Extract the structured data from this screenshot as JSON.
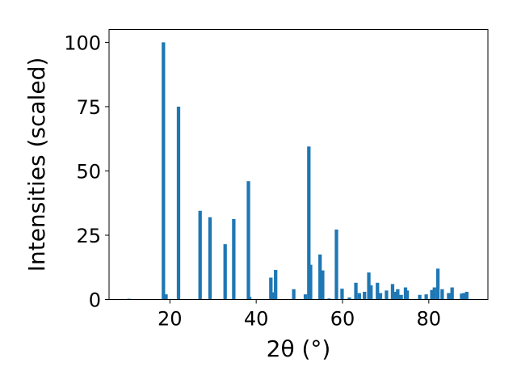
{
  "chart_data": {
    "type": "bar",
    "title": "",
    "xlabel": "2θ (°)",
    "ylabel": "Intensities (scaled)",
    "xlim": [
      5.9,
      93.7
    ],
    "ylim": [
      0,
      105
    ],
    "xticks": [
      20,
      40,
      60,
      80
    ],
    "yticks": [
      0,
      25,
      50,
      75,
      100
    ],
    "bar_color": "#1f77b4",
    "bar_width": 0.8,
    "grid": false,
    "legend": "none",
    "series": [
      {
        "x": [
          10.5,
          18.5,
          19.1,
          22.0,
          27.0,
          29.3,
          32.8,
          34.8,
          38.2,
          38.5,
          43.4,
          43.8,
          44.5,
          48.7,
          51.4,
          52.2,
          52.6,
          54.8,
          55.4,
          56.9,
          58.6,
          59.9,
          61.6,
          63.1,
          63.9,
          65.1,
          66.1,
          66.6,
          68.1,
          68.8,
          70.2,
          71.6,
          72.1,
          72.8,
          73.6,
          74.6,
          75.0,
          77.9,
          79.4,
          80.7,
          81.3,
          82.1,
          83.1,
          84.6,
          85.4,
          87.6,
          88.1,
          88.8
        ],
        "values": [
          0.3,
          100,
          2,
          75,
          34.5,
          32,
          21.5,
          31.3,
          46,
          1,
          8.5,
          2.8,
          11.5,
          4,
          2,
          59.5,
          13.5,
          17.5,
          11.3,
          0.4,
          27.2,
          4.2,
          0.8,
          6.5,
          2.5,
          3,
          10.5,
          5.5,
          6.5,
          2.5,
          3.5,
          6,
          3,
          4,
          1.8,
          4.7,
          3.5,
          1.8,
          2,
          3.7,
          4.7,
          12,
          4,
          2.5,
          4.7,
          2.3,
          2.5,
          3
        ]
      }
    ]
  }
}
